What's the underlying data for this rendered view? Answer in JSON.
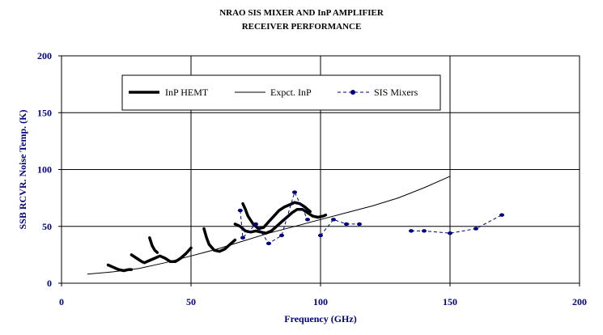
{
  "chart_data": {
    "type": "line",
    "title_line1": "NRAO SIS MIXER AND InP AMPLIFIER",
    "title_line2": "RECEIVER  PERFORMANCE",
    "xlabel": "Frequency (GHz)",
    "ylabel": "SSB RCVR. Noise Temp. (K)",
    "xlim": [
      0,
      200
    ],
    "ylim": [
      0,
      200
    ],
    "xticks": [
      "0",
      "50",
      "100",
      "150",
      "200"
    ],
    "yticks": [
      "0",
      "50",
      "100",
      "150",
      "200"
    ],
    "grid": true,
    "legend_position": "top-left",
    "colors": {
      "axis_text": "#000080",
      "inp_hemt": "#000000",
      "expct_inp": "#000000",
      "sis_mixers": "#000080"
    },
    "series": [
      {
        "name": "InP HEMT",
        "style": "thick-line",
        "segments": [
          [
            [
              18,
              16
            ],
            [
              20,
              14
            ],
            [
              22,
              12
            ],
            [
              24,
              11
            ],
            [
              26,
              12
            ],
            [
              27,
              12
            ]
          ],
          [
            [
              27,
              25
            ],
            [
              29,
              22
            ],
            [
              31,
              19
            ],
            [
              32,
              18
            ],
            [
              34,
              20
            ],
            [
              36,
              22
            ],
            [
              38,
              24
            ],
            [
              40,
              22
            ],
            [
              42,
              19
            ],
            [
              44,
              19
            ],
            [
              46,
              22
            ],
            [
              48,
              26
            ],
            [
              50,
              31
            ]
          ],
          [
            [
              34,
              40
            ],
            [
              35,
              33
            ],
            [
              36,
              29
            ],
            [
              37,
              27
            ]
          ],
          [
            [
              55,
              48
            ],
            [
              56,
              40
            ],
            [
              57,
              34
            ],
            [
              59,
              29
            ],
            [
              61,
              28
            ],
            [
              63,
              30
            ],
            [
              65,
              34
            ],
            [
              67,
              38
            ]
          ],
          [
            [
              67,
              52
            ],
            [
              69,
              50
            ],
            [
              71,
              46
            ],
            [
              73,
              45
            ],
            [
              75,
              46
            ],
            [
              77,
              45
            ],
            [
              79,
              44
            ],
            [
              81,
              46
            ],
            [
              83,
              50
            ],
            [
              85,
              54
            ],
            [
              87,
              58
            ],
            [
              89,
              62
            ],
            [
              91,
              65
            ],
            [
              93,
              65
            ],
            [
              95,
              62
            ],
            [
              97,
              59
            ],
            [
              99,
              58
            ],
            [
              101,
              59
            ],
            [
              102,
              60
            ]
          ],
          [
            [
              70,
              70
            ],
            [
              71,
              65
            ],
            [
              72,
              59
            ],
            [
              74,
              52
            ],
            [
              76,
              48
            ],
            [
              78,
              49
            ],
            [
              80,
              54
            ],
            [
              82,
              59
            ],
            [
              84,
              64
            ],
            [
              86,
              67
            ],
            [
              88,
              69
            ],
            [
              90,
              71
            ],
            [
              92,
              70
            ],
            [
              94,
              67
            ],
            [
              96,
              63
            ]
          ]
        ]
      },
      {
        "name": "Expct. InP",
        "style": "thin-line",
        "points": [
          [
            10,
            8
          ],
          [
            20,
            10
          ],
          [
            30,
            13
          ],
          [
            40,
            18
          ],
          [
            50,
            24
          ],
          [
            60,
            30
          ],
          [
            70,
            37
          ],
          [
            80,
            44
          ],
          [
            90,
            50
          ],
          [
            100,
            56
          ],
          [
            110,
            62
          ],
          [
            120,
            68
          ],
          [
            130,
            75
          ],
          [
            140,
            84
          ],
          [
            150,
            94
          ]
        ]
      },
      {
        "name": "SIS Mixers",
        "style": "dashed-with-markers",
        "segments": [
          [
            [
              69,
              64
            ],
            [
              70,
              40
            ],
            [
              75,
              52
            ],
            [
              80,
              35
            ],
            [
              85,
              42
            ],
            [
              90,
              80
            ],
            [
              95,
              56
            ]
          ],
          [
            [
              100,
              42
            ],
            [
              105,
              56
            ],
            [
              110,
              52
            ],
            [
              115,
              52
            ]
          ],
          [
            [
              135,
              46
            ],
            [
              140,
              46
            ],
            [
              150,
              44
            ],
            [
              160,
              48
            ],
            [
              170,
              60
            ]
          ]
        ]
      }
    ]
  }
}
